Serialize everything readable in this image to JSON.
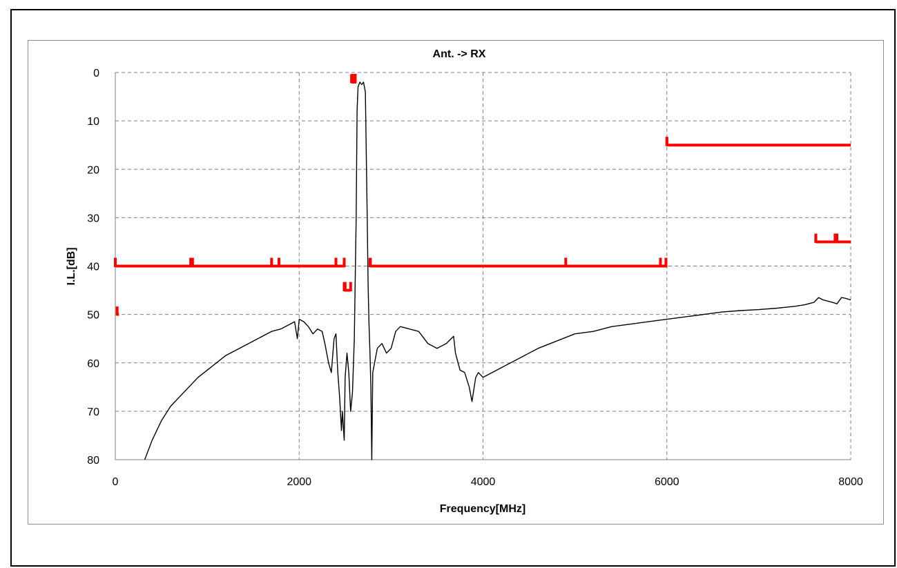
{
  "chart_data": {
    "type": "line",
    "title": "Ant. -> RX",
    "xlabel": "Frequency[MHz]",
    "ylabel": "I.L.[dB]",
    "xlim": [
      0,
      8000
    ],
    "ylim": [
      0,
      80
    ],
    "y_inverted": true,
    "grid": true,
    "x_ticks": [
      "0",
      "2000",
      "4000",
      "6000",
      "8000"
    ],
    "y_ticks": [
      "0",
      "10",
      "20",
      "30",
      "40",
      "50",
      "60",
      "70",
      "80"
    ],
    "colors": {
      "measured": "#000000",
      "spec_limit": "#ff0000",
      "grid": "#7f7f7f"
    },
    "series": [
      {
        "kind": "measured",
        "points": [
          [
            320,
            80
          ],
          [
            400,
            76
          ],
          [
            500,
            72
          ],
          [
            600,
            69
          ],
          [
            700,
            67
          ],
          [
            800,
            65
          ],
          [
            900,
            63
          ],
          [
            1000,
            61.5
          ],
          [
            1100,
            60
          ],
          [
            1200,
            58.5
          ],
          [
            1300,
            57.5
          ],
          [
            1400,
            56.5
          ],
          [
            1500,
            55.5
          ],
          [
            1600,
            54.5
          ],
          [
            1700,
            53.5
          ],
          [
            1800,
            53
          ],
          [
            1900,
            52
          ],
          [
            1950,
            51.5
          ],
          [
            1980,
            55
          ],
          [
            2000,
            51
          ],
          [
            2050,
            51.5
          ],
          [
            2100,
            52.5
          ],
          [
            2150,
            54
          ],
          [
            2200,
            53
          ],
          [
            2250,
            53.5
          ],
          [
            2280,
            56
          ],
          [
            2320,
            60
          ],
          [
            2350,
            62
          ],
          [
            2380,
            55
          ],
          [
            2400,
            54
          ],
          [
            2420,
            62
          ],
          [
            2440,
            67
          ],
          [
            2460,
            74
          ],
          [
            2470,
            70
          ],
          [
            2490,
            76
          ],
          [
            2500,
            63
          ],
          [
            2520,
            58
          ],
          [
            2540,
            62
          ],
          [
            2560,
            70
          ],
          [
            2580,
            66
          ],
          [
            2600,
            55
          ],
          [
            2610,
            42
          ],
          [
            2620,
            30
          ],
          [
            2630,
            8
          ],
          [
            2640,
            3
          ],
          [
            2660,
            2
          ],
          [
            2680,
            2.5
          ],
          [
            2700,
            2
          ],
          [
            2720,
            4
          ],
          [
            2740,
            30
          ],
          [
            2750,
            44
          ],
          [
            2760,
            52
          ],
          [
            2770,
            58
          ],
          [
            2780,
            65
          ],
          [
            2790,
            80
          ],
          [
            2800,
            62
          ],
          [
            2850,
            57
          ],
          [
            2900,
            56
          ],
          [
            2950,
            58
          ],
          [
            3000,
            57
          ],
          [
            3050,
            53.5
          ],
          [
            3100,
            52.5
          ],
          [
            3200,
            53
          ],
          [
            3300,
            53.5
          ],
          [
            3400,
            56
          ],
          [
            3500,
            57
          ],
          [
            3600,
            56
          ],
          [
            3680,
            54.5
          ],
          [
            3700,
            58
          ],
          [
            3750,
            61.5
          ],
          [
            3800,
            62
          ],
          [
            3850,
            65
          ],
          [
            3880,
            68
          ],
          [
            3920,
            63
          ],
          [
            3950,
            62
          ],
          [
            4000,
            63
          ],
          [
            4100,
            62
          ],
          [
            4200,
            61
          ],
          [
            4400,
            59
          ],
          [
            4600,
            57
          ],
          [
            4800,
            55.5
          ],
          [
            5000,
            54
          ],
          [
            5200,
            53.5
          ],
          [
            5400,
            52.5
          ],
          [
            5600,
            52
          ],
          [
            5800,
            51.5
          ],
          [
            6000,
            51
          ],
          [
            6200,
            50.5
          ],
          [
            6400,
            50
          ],
          [
            6600,
            49.5
          ],
          [
            6800,
            49.2
          ],
          [
            7000,
            49
          ],
          [
            7200,
            48.7
          ],
          [
            7400,
            48.3
          ],
          [
            7500,
            48
          ],
          [
            7600,
            47.5
          ],
          [
            7650,
            46.5
          ],
          [
            7700,
            47
          ],
          [
            7800,
            47.5
          ],
          [
            7850,
            47.8
          ],
          [
            7900,
            46.5
          ],
          [
            7950,
            46.7
          ],
          [
            8000,
            47
          ]
        ]
      },
      {
        "kind": "spec_limit",
        "segments": [
          {
            "x": [
              20,
              40
            ],
            "y": 50,
            "depth": 1.5
          },
          {
            "x": [
              0,
              2500
            ],
            "y": 40,
            "depth": 1.5
          },
          {
            "x": [
              2490,
              2560
            ],
            "y": 45,
            "depth": 1.5
          },
          {
            "x": [
              2570,
              2620
            ],
            "y": 2,
            "depth": 1.5
          },
          {
            "x": [
              2770,
              6000
            ],
            "y": 40,
            "depth": 1.5
          },
          {
            "x": [
              6000,
              8000
            ],
            "y": 15,
            "depth": 1.5
          },
          {
            "x": [
              7620,
              8000
            ],
            "y": 35,
            "depth": 1.5
          }
        ],
        "markers": [
          {
            "x": 0,
            "y": 40
          },
          {
            "x": 820,
            "y": 40
          },
          {
            "x": 840,
            "y": 40
          },
          {
            "x": 1700,
            "y": 40
          },
          {
            "x": 1780,
            "y": 40
          },
          {
            "x": 2400,
            "y": 40
          },
          {
            "x": 2490,
            "y": 40
          },
          {
            "x": 2775,
            "y": 40
          },
          {
            "x": 4900,
            "y": 40
          },
          {
            "x": 5930,
            "y": 40
          },
          {
            "x": 5990,
            "y": 40
          },
          {
            "x": 6000,
            "y": 15
          },
          {
            "x": 7620,
            "y": 35
          },
          {
            "x": 7830,
            "y": 35
          },
          {
            "x": 7850,
            "y": 35
          },
          {
            "x": 2500,
            "y": 45
          },
          {
            "x": 2560,
            "y": 45
          },
          {
            "x": 2580,
            "y": 2
          },
          {
            "x": 2610,
            "y": 2
          }
        ]
      }
    ]
  }
}
